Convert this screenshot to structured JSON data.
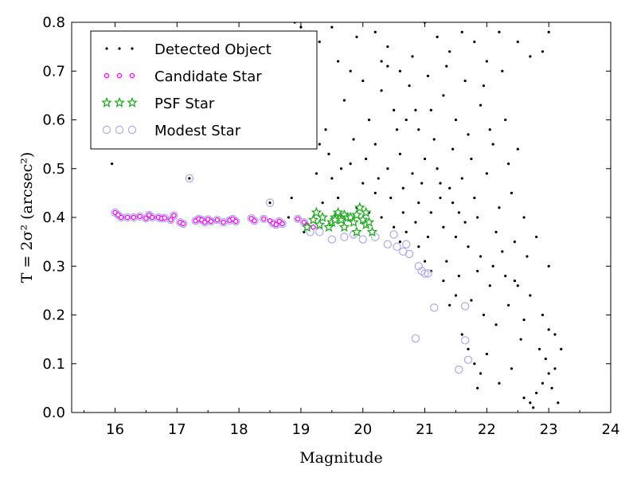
{
  "chart_data": {
    "type": "scatter",
    "title": "",
    "xlabel": "Magnitude",
    "ylabel": "T = 2σ² (arcsec²)",
    "xlim": [
      15.3,
      24
    ],
    "ylim": [
      0.0,
      0.8
    ],
    "xticks": [
      "16",
      "17",
      "18",
      "19",
      "20",
      "21",
      "22",
      "23",
      "24"
    ],
    "yticks": [
      "0.0",
      "0.1",
      "0.2",
      "0.3",
      "0.4",
      "0.5",
      "0.6",
      "0.7",
      "0.8"
    ],
    "grid": false,
    "legend_position": "top-left",
    "series": [
      {
        "name": "Detected Object",
        "marker": "dot",
        "color": "#000000",
        "points": [
          [
            15.95,
            0.51
          ],
          [
            17.2,
            0.48
          ],
          [
            18.5,
            0.43
          ],
          [
            18.85,
            0.44
          ],
          [
            18.8,
            0.4
          ],
          [
            19.05,
            0.37
          ],
          [
            19.3,
            0.55
          ],
          [
            19.5,
            0.48
          ],
          [
            19.8,
            0.51
          ],
          [
            20.0,
            0.47
          ],
          [
            20.2,
            0.45
          ],
          [
            20.1,
            0.41
          ],
          [
            18.9,
            0.8
          ],
          [
            19.0,
            0.79
          ],
          [
            19.2,
            0.62
          ],
          [
            19.1,
            0.74
          ],
          [
            19.35,
            0.43
          ],
          [
            19.6,
            0.44
          ],
          [
            19.9,
            0.42
          ],
          [
            20.3,
            0.4
          ],
          [
            20.5,
            0.38
          ],
          [
            20.7,
            0.37
          ],
          [
            20.6,
            0.35
          ],
          [
            20.9,
            0.34
          ],
          [
            21.1,
            0.29
          ],
          [
            21.0,
            0.31
          ],
          [
            21.3,
            0.27
          ],
          [
            21.5,
            0.24
          ],
          [
            21.4,
            0.22
          ],
          [
            21.6,
            0.16
          ],
          [
            21.7,
            0.13
          ],
          [
            21.8,
            0.1
          ],
          [
            21.9,
            0.08
          ],
          [
            22.0,
            0.12
          ],
          [
            21.85,
            0.05
          ],
          [
            22.2,
            0.06
          ],
          [
            22.4,
            0.09
          ],
          [
            22.6,
            0.03
          ],
          [
            22.7,
            0.02
          ],
          [
            22.75,
            0.01
          ],
          [
            22.8,
            0.04
          ],
          [
            22.9,
            0.06
          ],
          [
            23.0,
            0.08
          ],
          [
            23.05,
            0.05
          ],
          [
            23.1,
            0.16
          ],
          [
            23.15,
            0.02
          ],
          [
            22.95,
            0.11
          ],
          [
            20.2,
            0.78
          ],
          [
            20.4,
            0.75
          ],
          [
            20.6,
            0.7
          ],
          [
            20.8,
            0.73
          ],
          [
            21.0,
            0.8
          ],
          [
            21.2,
            0.77
          ],
          [
            21.4,
            0.74
          ],
          [
            21.6,
            0.78
          ],
          [
            21.8,
            0.76
          ],
          [
            22.0,
            0.72
          ],
          [
            22.2,
            0.78
          ],
          [
            22.5,
            0.76
          ],
          [
            22.7,
            0.73
          ],
          [
            22.9,
            0.74
          ],
          [
            23.0,
            0.78
          ],
          [
            20.3,
            0.66
          ],
          [
            20.5,
            0.62
          ],
          [
            20.7,
            0.6
          ],
          [
            20.9,
            0.58
          ],
          [
            21.1,
            0.62
          ],
          [
            21.3,
            0.65
          ],
          [
            21.5,
            0.6
          ],
          [
            21.7,
            0.57
          ],
          [
            21.9,
            0.63
          ],
          [
            22.1,
            0.55
          ],
          [
            22.3,
            0.6
          ],
          [
            22.5,
            0.54
          ],
          [
            20.2,
            0.55
          ],
          [
            20.4,
            0.5
          ],
          [
            20.6,
            0.53
          ],
          [
            20.8,
            0.49
          ],
          [
            21.0,
            0.52
          ],
          [
            21.2,
            0.5
          ],
          [
            21.4,
            0.46
          ],
          [
            21.6,
            0.48
          ],
          [
            21.8,
            0.44
          ],
          [
            22.0,
            0.49
          ],
          [
            22.2,
            0.42
          ],
          [
            22.4,
            0.45
          ],
          [
            22.6,
            0.4
          ],
          [
            22.8,
            0.36
          ],
          [
            23.0,
            0.3
          ],
          [
            20.9,
            0.43
          ],
          [
            21.1,
            0.41
          ],
          [
            21.3,
            0.38
          ],
          [
            21.5,
            0.36
          ],
          [
            21.7,
            0.34
          ],
          [
            21.9,
            0.32
          ],
          [
            22.1,
            0.3
          ],
          [
            22.3,
            0.28
          ],
          [
            22.5,
            0.26
          ],
          [
            22.7,
            0.24
          ],
          [
            22.9,
            0.2
          ],
          [
            23.0,
            0.17
          ],
          [
            20.4,
            0.71
          ],
          [
            20.75,
            0.67
          ],
          [
            21.05,
            0.69
          ],
          [
            21.35,
            0.71
          ],
          [
            21.65,
            0.68
          ],
          [
            21.95,
            0.67
          ],
          [
            22.25,
            0.7
          ],
          [
            20.55,
            0.58
          ],
          [
            20.85,
            0.62
          ],
          [
            21.15,
            0.56
          ],
          [
            21.45,
            0.54
          ],
          [
            21.75,
            0.52
          ],
          [
            22.05,
            0.58
          ],
          [
            22.35,
            0.51
          ],
          [
            20.65,
            0.46
          ],
          [
            20.95,
            0.47
          ],
          [
            21.25,
            0.44
          ],
          [
            21.55,
            0.41
          ],
          [
            21.85,
            0.4
          ],
          [
            22.15,
            0.37
          ],
          [
            22.45,
            0.35
          ],
          [
            22.65,
            0.32
          ],
          [
            22.35,
            0.22
          ],
          [
            22.15,
            0.18
          ],
          [
            21.95,
            0.2
          ],
          [
            21.75,
            0.23
          ],
          [
            21.55,
            0.28
          ],
          [
            21.35,
            0.31
          ],
          [
            22.55,
            0.15
          ],
          [
            22.85,
            0.13
          ],
          [
            19.4,
            0.58
          ],
          [
            19.7,
            0.64
          ],
          [
            19.6,
            0.72
          ],
          [
            19.3,
            0.76
          ],
          [
            19.5,
            0.79
          ],
          [
            19.8,
            0.7
          ],
          [
            20.1,
            0.6
          ],
          [
            20.0,
            0.68
          ],
          [
            19.9,
            0.77
          ],
          [
            20.3,
            0.72
          ],
          [
            23.2,
            0.13
          ],
          [
            23.1,
            0.09
          ],
          [
            22.6,
            0.19
          ],
          [
            22.45,
            0.27
          ],
          [
            22.25,
            0.33
          ],
          [
            22.05,
            0.26
          ],
          [
            21.85,
            0.29
          ],
          [
            21.65,
            0.39
          ],
          [
            21.45,
            0.43
          ],
          [
            21.25,
            0.47
          ],
          [
            21.05,
            0.36
          ],
          [
            20.85,
            0.39
          ],
          [
            20.65,
            0.41
          ],
          [
            20.45,
            0.44
          ],
          [
            20.25,
            0.48
          ],
          [
            20.05,
            0.52
          ],
          [
            19.85,
            0.56
          ],
          [
            19.65,
            0.5
          ],
          [
            19.45,
            0.53
          ],
          [
            19.25,
            0.49
          ]
        ]
      },
      {
        "name": "Candidate Star",
        "marker": "small-circle",
        "color": "#ff00ff",
        "points": [
          [
            16.0,
            0.41
          ],
          [
            16.05,
            0.405
          ],
          [
            16.1,
            0.4
          ],
          [
            16.2,
            0.4
          ],
          [
            16.3,
            0.4
          ],
          [
            16.4,
            0.402
          ],
          [
            16.5,
            0.398
          ],
          [
            16.55,
            0.405
          ],
          [
            16.6,
            0.4
          ],
          [
            16.7,
            0.4
          ],
          [
            16.75,
            0.398
          ],
          [
            16.8,
            0.399
          ],
          [
            16.9,
            0.395
          ],
          [
            16.95,
            0.404
          ],
          [
            17.05,
            0.39
          ],
          [
            17.1,
            0.387
          ],
          [
            17.3,
            0.393
          ],
          [
            17.35,
            0.397
          ],
          [
            17.4,
            0.395
          ],
          [
            17.45,
            0.39
          ],
          [
            17.5,
            0.396
          ],
          [
            17.55,
            0.392
          ],
          [
            17.65,
            0.395
          ],
          [
            17.75,
            0.39
          ],
          [
            17.85,
            0.394
          ],
          [
            17.9,
            0.397
          ],
          [
            17.95,
            0.392
          ],
          [
            18.2,
            0.398
          ],
          [
            18.25,
            0.393
          ],
          [
            18.4,
            0.397
          ],
          [
            18.5,
            0.393
          ],
          [
            18.55,
            0.388
          ],
          [
            18.6,
            0.385
          ],
          [
            18.65,
            0.392
          ],
          [
            18.7,
            0.387
          ],
          [
            18.95,
            0.397
          ],
          [
            19.05,
            0.39
          ],
          [
            19.1,
            0.384
          ],
          [
            19.2,
            0.38
          ]
        ]
      },
      {
        "name": "PSF Star",
        "marker": "star",
        "color": "#22aa22",
        "points": [
          [
            19.1,
            0.38
          ],
          [
            19.2,
            0.395
          ],
          [
            19.25,
            0.41
          ],
          [
            19.3,
            0.385
          ],
          [
            19.35,
            0.4
          ],
          [
            19.45,
            0.38
          ],
          [
            19.5,
            0.39
          ],
          [
            19.55,
            0.4
          ],
          [
            19.6,
            0.41
          ],
          [
            19.65,
            0.395
          ],
          [
            19.7,
            0.405
          ],
          [
            19.75,
            0.4
          ],
          [
            19.8,
            0.4
          ],
          [
            19.85,
            0.39
          ],
          [
            19.9,
            0.405
          ],
          [
            19.95,
            0.42
          ],
          [
            20.0,
            0.395
          ],
          [
            20.05,
            0.385
          ],
          [
            20.1,
            0.39
          ],
          [
            20.15,
            0.37
          ],
          [
            19.9,
            0.37
          ],
          [
            19.7,
            0.38
          ],
          [
            19.55,
            0.395
          ],
          [
            20.05,
            0.41
          ]
        ]
      },
      {
        "name": "Modest Star",
        "marker": "open-circle",
        "color": "#aaaaee",
        "points": [
          [
            16.0,
            0.41
          ],
          [
            16.05,
            0.405
          ],
          [
            16.1,
            0.4
          ],
          [
            16.2,
            0.4
          ],
          [
            16.3,
            0.4
          ],
          [
            16.4,
            0.402
          ],
          [
            16.5,
            0.398
          ],
          [
            16.55,
            0.405
          ],
          [
            16.6,
            0.4
          ],
          [
            16.7,
            0.4
          ],
          [
            16.75,
            0.398
          ],
          [
            16.8,
            0.399
          ],
          [
            16.9,
            0.395
          ],
          [
            16.95,
            0.404
          ],
          [
            17.05,
            0.39
          ],
          [
            17.1,
            0.387
          ],
          [
            17.2,
            0.48
          ],
          [
            17.3,
            0.393
          ],
          [
            17.35,
            0.397
          ],
          [
            17.4,
            0.395
          ],
          [
            17.45,
            0.39
          ],
          [
            17.5,
            0.396
          ],
          [
            17.55,
            0.392
          ],
          [
            17.65,
            0.395
          ],
          [
            17.75,
            0.39
          ],
          [
            17.85,
            0.394
          ],
          [
            17.9,
            0.397
          ],
          [
            17.95,
            0.392
          ],
          [
            18.2,
            0.398
          ],
          [
            18.25,
            0.393
          ],
          [
            18.4,
            0.397
          ],
          [
            18.5,
            0.43
          ],
          [
            18.55,
            0.388
          ],
          [
            18.6,
            0.385
          ],
          [
            18.65,
            0.392
          ],
          [
            18.7,
            0.387
          ],
          [
            18.95,
            0.397
          ],
          [
            19.05,
            0.39
          ],
          [
            19.15,
            0.37
          ],
          [
            19.3,
            0.37
          ],
          [
            19.5,
            0.355
          ],
          [
            19.7,
            0.36
          ],
          [
            19.85,
            0.365
          ],
          [
            20.0,
            0.355
          ],
          [
            20.2,
            0.36
          ],
          [
            20.4,
            0.345
          ],
          [
            20.5,
            0.365
          ],
          [
            20.55,
            0.34
          ],
          [
            20.65,
            0.33
          ],
          [
            20.7,
            0.345
          ],
          [
            20.75,
            0.325
          ],
          [
            20.9,
            0.3
          ],
          [
            20.95,
            0.29
          ],
          [
            21.0,
            0.285
          ],
          [
            21.05,
            0.285
          ],
          [
            21.15,
            0.215
          ],
          [
            20.85,
            0.152
          ],
          [
            21.55,
            0.088
          ],
          [
            21.65,
            0.148
          ],
          [
            21.7,
            0.108
          ],
          [
            21.65,
            0.218
          ]
        ]
      }
    ]
  }
}
